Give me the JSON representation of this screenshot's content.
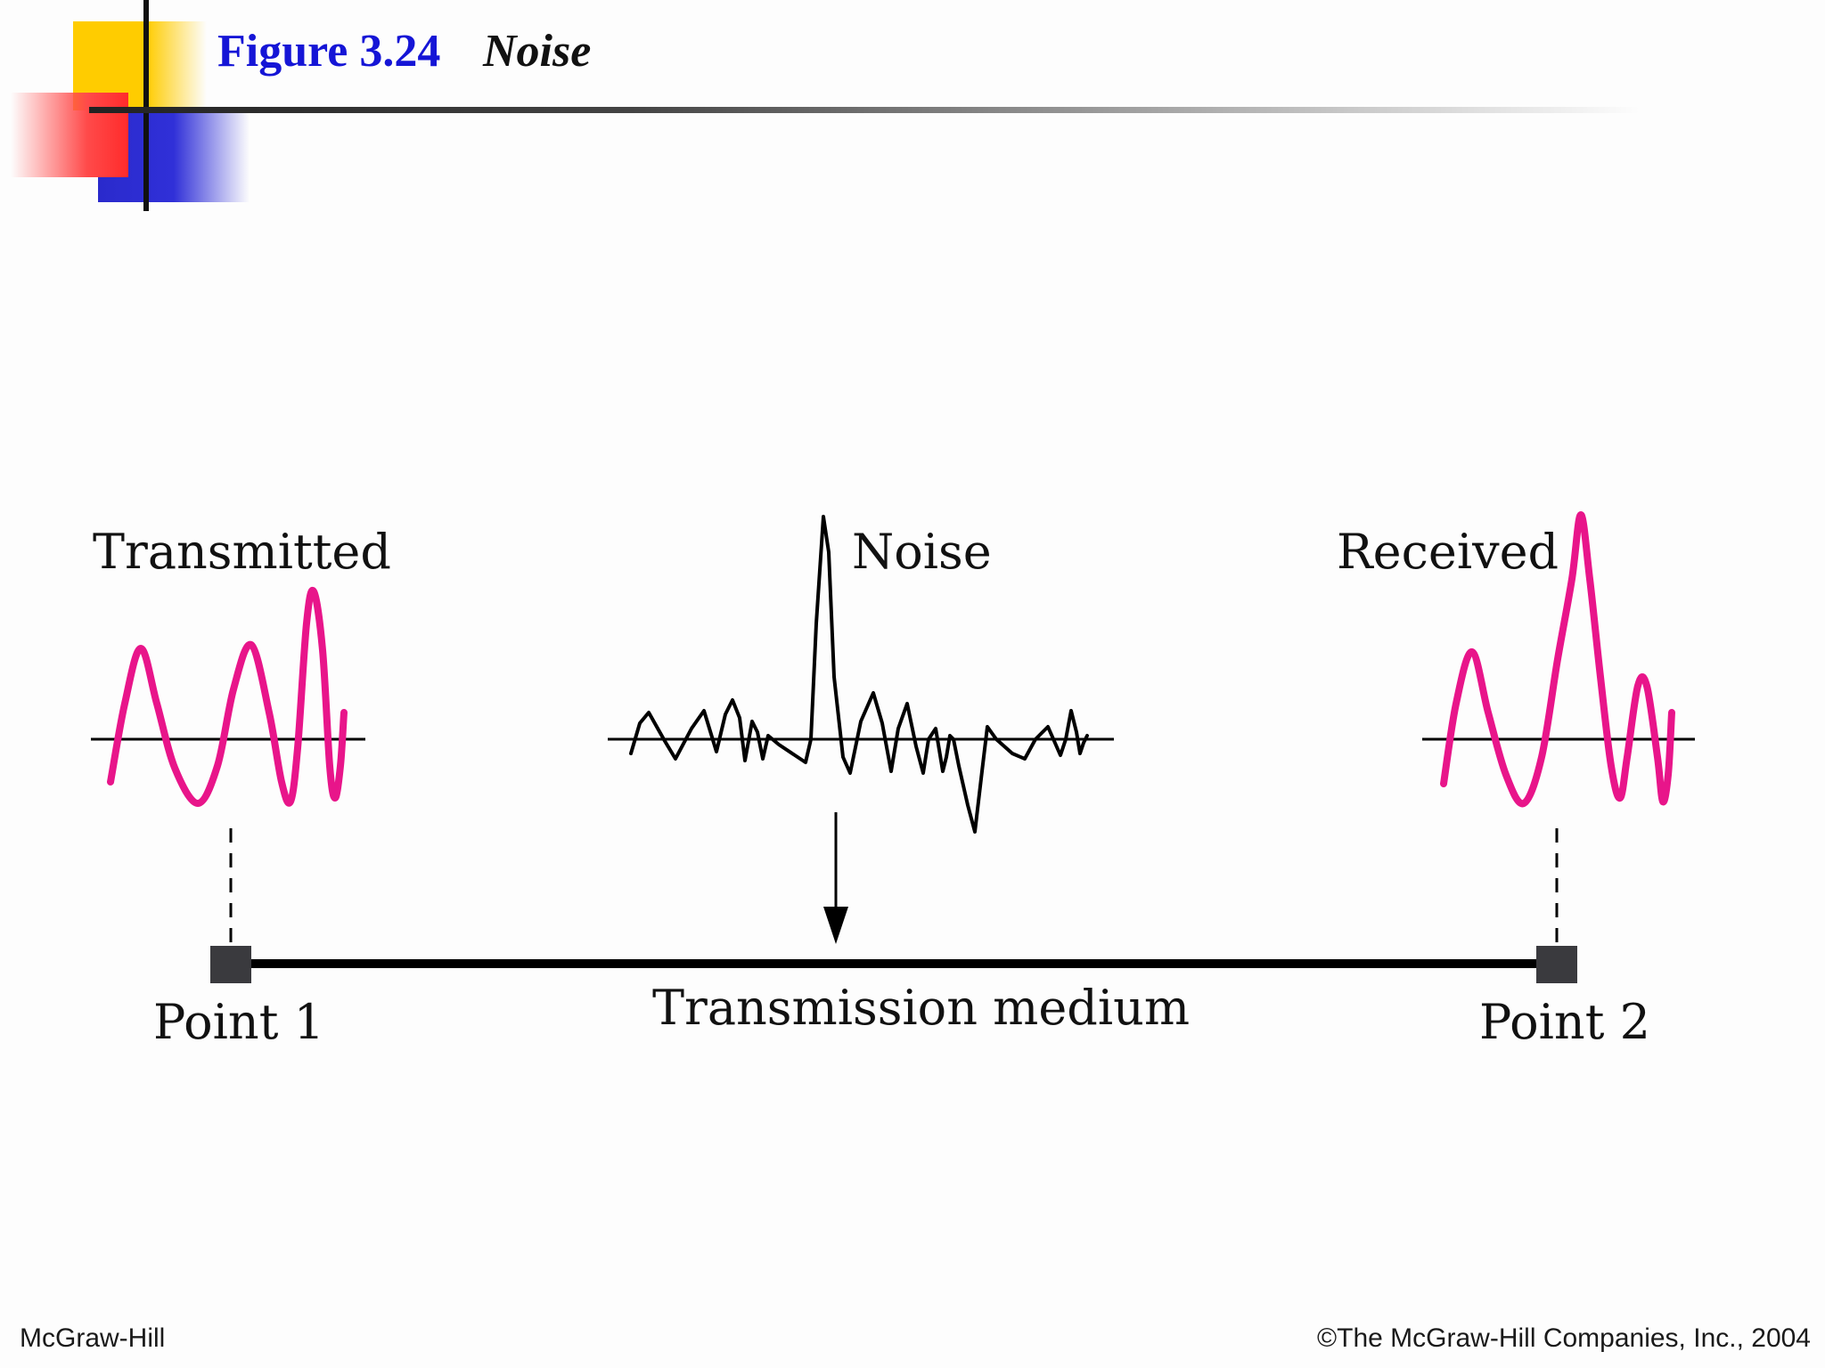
{
  "slide": {
    "figure_label": "Figure 3.24",
    "figure_title": "Noise"
  },
  "diagram": {
    "labels": {
      "transmitted": "Transmitted",
      "noise": "Noise",
      "received": "Received",
      "point1": "Point 1",
      "point2": "Point 2",
      "medium": "Transmission medium"
    },
    "colors": {
      "signal": "#e8158a",
      "noise": "#000000",
      "endpoint": "#3a3a3e",
      "medium_line": "#000000"
    }
  },
  "footer": {
    "left": "McGraw-Hill",
    "right": "©The McGraw-Hill Companies, Inc., 2004"
  }
}
